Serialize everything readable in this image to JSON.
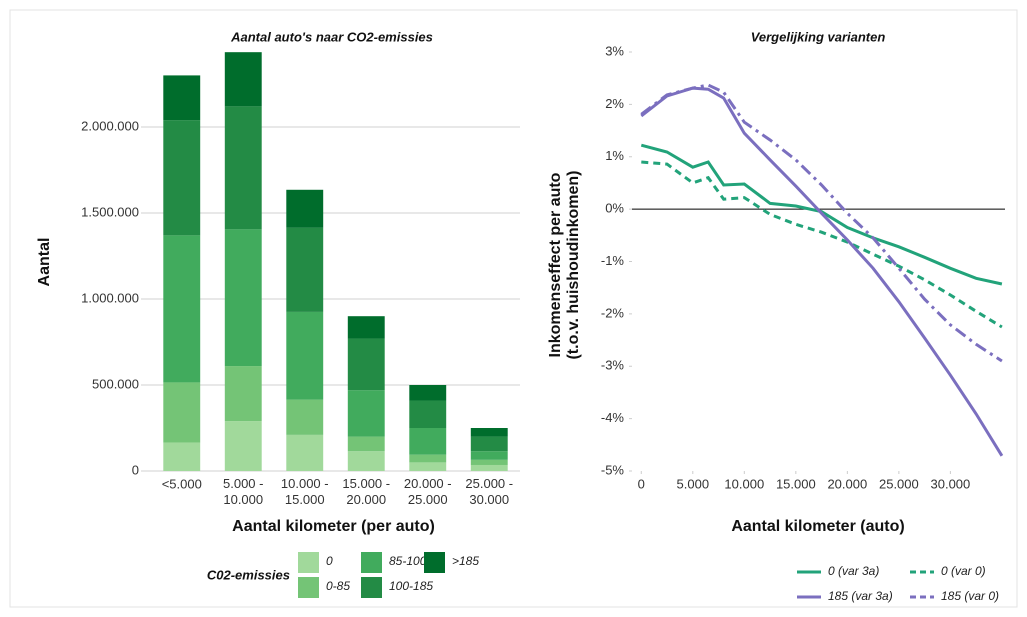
{
  "chart_data": [
    {
      "type": "bar",
      "stacked": true,
      "title": "Aantal auto's naar CO2-emissies",
      "xlabel": "Aantal kilometer (per auto)",
      "ylabel": "Aantal",
      "categories": [
        "<5.000",
        "5.000 - 10.000",
        "10.000 - 15.000",
        "15.000 - 20.000",
        "20.000 - 25.000",
        "25.000 - 30.000"
      ],
      "series": [
        {
          "name": "0",
          "color": "#a1d99b",
          "values": [
            165000,
            290000,
            210000,
            115000,
            50000,
            35000
          ]
        },
        {
          "name": "0-85",
          "color": "#74c476",
          "values": [
            350000,
            320000,
            205000,
            85000,
            45000,
            30000
          ]
        },
        {
          "name": "85-100",
          "color": "#41ab5d",
          "values": [
            855000,
            795000,
            510000,
            270000,
            155000,
            50000
          ]
        },
        {
          "name": "100-185",
          "color": "#238b45",
          "values": [
            670000,
            715000,
            490000,
            300000,
            160000,
            85000
          ]
        },
        {
          "name": ">185",
          "color": "#006d2c",
          "values": [
            260000,
            315000,
            220000,
            130000,
            90000,
            50000
          ]
        }
      ],
      "ylim": [
        0,
        2500000
      ],
      "yticks": [
        0,
        {
          "value": 500000,
          "label": "500.000"
        },
        {
          "value": 1000000,
          "label": "1.000.000"
        },
        {
          "value": 1500000,
          "label": "1.500.000"
        },
        {
          "value": 2000000,
          "label": "2.000.000"
        }
      ],
      "grid": true,
      "legend_title": "C02-emissies",
      "legend_position": "bottom"
    },
    {
      "type": "line",
      "title": "Vergelijking varianten",
      "xlabel": "Aantal kilometer (auto)",
      "ylabel": [
        "Inkomenseffect per auto",
        "(t.o.v. huishoudinkomen)"
      ],
      "x": [
        0,
        2500,
        5000,
        6500,
        8000,
        10000,
        12500,
        15000,
        17500,
        20000,
        22500,
        25000,
        27500,
        30000,
        32500,
        35000
      ],
      "series": [
        {
          "name": "0 (var 3a)",
          "color": "#22a37a",
          "dash": "solid",
          "values": [
            1.22,
            1.09,
            0.8,
            0.9,
            0.46,
            0.48,
            0.11,
            0.06,
            -0.05,
            -0.35,
            -0.55,
            -0.72,
            -0.92,
            -1.13,
            -1.32,
            -1.43
          ]
        },
        {
          "name": "0 (var 0)",
          "color": "#22a37a",
          "dash": "dashed",
          "values": [
            0.9,
            0.86,
            0.5,
            0.6,
            0.19,
            0.22,
            -0.1,
            -0.29,
            -0.44,
            -0.63,
            -0.86,
            -1.09,
            -1.35,
            -1.64,
            -1.95,
            -2.25
          ]
        },
        {
          "name": "185 (var 3a)",
          "color": "#7b6fbf",
          "dash": "solid",
          "values": [
            1.78,
            2.16,
            2.31,
            2.29,
            2.12,
            1.45,
            0.94,
            0.44,
            -0.08,
            -0.59,
            -1.13,
            -1.77,
            -2.46,
            -3.17,
            -3.91,
            -4.71
          ]
        },
        {
          "name": "185 (var 0)",
          "color": "#7b6fbf",
          "dash": "dashdot",
          "values": [
            1.81,
            2.18,
            2.31,
            2.37,
            2.23,
            1.66,
            1.32,
            0.94,
            0.46,
            -0.08,
            -0.55,
            -1.13,
            -1.72,
            -2.21,
            -2.58,
            -2.9
          ]
        }
      ],
      "xlim": [
        -900,
        35300
      ],
      "ylim": [
        -5,
        3
      ],
      "xticks": [
        0,
        {
          "value": 5000,
          "label": "5.000"
        },
        {
          "value": 10000,
          "label": "10.000"
        },
        {
          "value": 15000,
          "label": "15.000"
        },
        {
          "value": 20000,
          "label": "20.000"
        },
        {
          "value": 25000,
          "label": "25.000"
        },
        {
          "value": 30000,
          "label": "30.000"
        }
      ],
      "yticks": [
        {
          "value": -5,
          "label": "-5%"
        },
        {
          "value": -4,
          "label": "-4%"
        },
        {
          "value": -3,
          "label": "-3%"
        },
        {
          "value": -2,
          "label": "-2%"
        },
        {
          "value": -1,
          "label": "-1%"
        },
        {
          "value": 0,
          "label": "0%"
        },
        {
          "value": 1,
          "label": "1%"
        },
        {
          "value": 2,
          "label": "2%"
        },
        {
          "value": 3,
          "label": "3%"
        }
      ],
      "grid": false,
      "zero_line": true,
      "legend_position": "bottom-right"
    }
  ]
}
